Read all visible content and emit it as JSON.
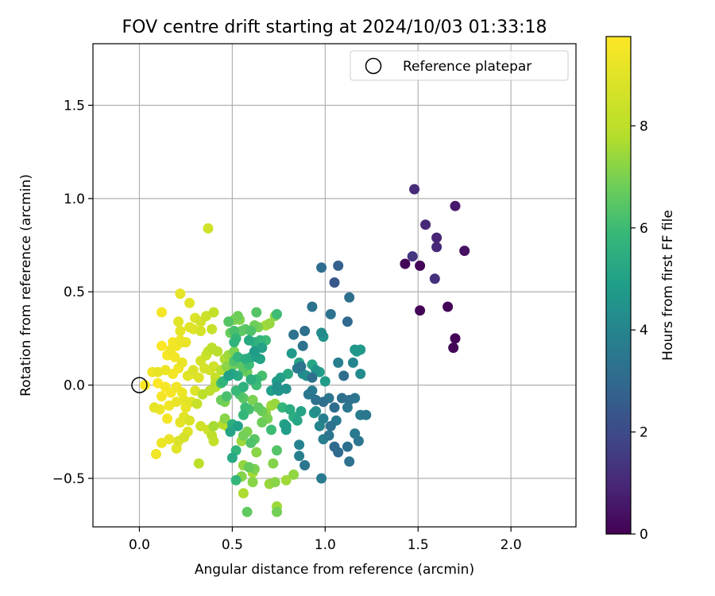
{
  "chart_data": {
    "type": "scatter",
    "title": "FOV centre drift starting at 2024/10/03 01:33:18",
    "xlabel": "Angular distance from reference (arcmin)",
    "ylabel": "Rotation from reference (arcmin)",
    "xlim": [
      -0.25,
      2.35
    ],
    "ylim": [
      -0.76,
      1.83
    ],
    "x_ticks": [
      0.0,
      0.5,
      1.0,
      1.5,
      2.0
    ],
    "x_tick_labels": [
      "0.0",
      "0.5",
      "1.0",
      "1.5",
      "2.0"
    ],
    "y_ticks": [
      -0.5,
      0.0,
      0.5,
      1.0,
      1.5
    ],
    "y_tick_labels": [
      "−0.5",
      "0.0",
      "0.5",
      "1.0",
      "1.5"
    ],
    "grid": true,
    "legend": {
      "placement": "upper right",
      "entries": [
        "Reference platepar"
      ]
    },
    "reference_point": {
      "name": "Reference platepar",
      "x": 0.0,
      "y": 0.0,
      "marker": "open circle"
    },
    "colorbar": {
      "label": "Hours from first FF file",
      "colormap": "viridis",
      "range": [
        0,
        9.75
      ],
      "ticks": [
        0,
        2,
        4,
        6,
        8
      ],
      "tick_labels": [
        "0",
        "2",
        "4",
        "6",
        "8"
      ]
    },
    "points": [
      [
        1.7,
        0.25,
        0.1
      ],
      [
        1.69,
        0.2,
        0.1
      ],
      [
        1.66,
        0.42,
        0.1
      ],
      [
        1.51,
        0.4,
        0.1
      ],
      [
        1.51,
        0.64,
        0.1
      ],
      [
        1.43,
        0.65,
        0.1
      ],
      [
        1.7,
        0.96,
        0.6
      ],
      [
        1.75,
        0.72,
        0.4
      ],
      [
        1.48,
        1.05,
        1.1
      ],
      [
        1.54,
        0.86,
        1.0
      ],
      [
        1.6,
        0.79,
        0.9
      ],
      [
        1.6,
        0.74,
        1.0
      ],
      [
        1.59,
        0.57,
        1.2
      ],
      [
        1.47,
        0.69,
        1.4
      ],
      [
        1.07,
        0.64,
        2.7
      ],
      [
        1.05,
        0.55,
        2.4
      ],
      [
        0.98,
        0.63,
        3.1
      ],
      [
        1.13,
        0.47,
        3.2
      ],
      [
        0.93,
        0.42,
        3.3
      ],
      [
        1.12,
        0.34,
        3.0
      ],
      [
        1.03,
        0.38,
        3.3
      ],
      [
        0.89,
        0.29,
        3.2
      ],
      [
        0.83,
        0.27,
        3.3
      ],
      [
        0.88,
        0.21,
        3.3
      ],
      [
        0.98,
        0.28,
        4.2
      ],
      [
        0.99,
        0.26,
        4.5
      ],
      [
        0.82,
        0.17,
        4.7
      ],
      [
        1.17,
        0.18,
        4.8
      ],
      [
        1.19,
        0.19,
        4.7
      ],
      [
        1.16,
        0.19,
        4.6
      ],
      [
        1.15,
        0.12,
        4.0
      ],
      [
        1.07,
        0.12,
        3.7
      ],
      [
        0.87,
        0.1,
        3.4
      ],
      [
        0.85,
        0.09,
        3.6
      ],
      [
        0.93,
        0.04,
        3.2
      ],
      [
        1.1,
        0.05,
        3.2
      ],
      [
        1.19,
        0.06,
        4.2
      ],
      [
        1.0,
        0.02,
        4.8
      ],
      [
        0.95,
        0.08,
        4.5
      ],
      [
        0.9,
        0.05,
        4.4
      ],
      [
        0.88,
        0.06,
        4.3
      ],
      [
        0.97,
        0.07,
        4.9
      ],
      [
        0.93,
        0.11,
        5.2
      ],
      [
        0.86,
        0.12,
        5.1
      ],
      [
        0.8,
        0.06,
        5.3
      ],
      [
        0.76,
        0.04,
        5.0
      ],
      [
        0.74,
        0.02,
        4.8
      ],
      [
        0.74,
        -0.01,
        4.4
      ],
      [
        0.75,
        -0.03,
        4.6
      ],
      [
        0.71,
        -0.03,
        4.9
      ],
      [
        0.79,
        -0.02,
        4.5
      ],
      [
        0.93,
        -0.03,
        3.6
      ],
      [
        0.91,
        -0.05,
        3.5
      ],
      [
        0.95,
        -0.08,
        3.3
      ],
      [
        0.99,
        -0.09,
        3.2
      ],
      [
        1.02,
        -0.07,
        3.4
      ],
      [
        1.05,
        -0.12,
        3.1
      ],
      [
        1.09,
        -0.07,
        3.2
      ],
      [
        1.13,
        -0.08,
        3.3
      ],
      [
        1.16,
        -0.07,
        3.4
      ],
      [
        1.12,
        -0.12,
        3.5
      ],
      [
        1.06,
        -0.19,
        3.6
      ],
      [
        1.03,
        -0.22,
        3.3
      ],
      [
        1.02,
        -0.27,
        3.4
      ],
      [
        1.05,
        -0.33,
        3.0
      ],
      [
        1.07,
        -0.36,
        3.0
      ],
      [
        1.12,
        -0.33,
        3.2
      ],
      [
        1.18,
        -0.3,
        3.4
      ],
      [
        1.16,
        -0.26,
        3.6
      ],
      [
        1.13,
        -0.41,
        3.3
      ],
      [
        1.19,
        -0.16,
        3.7
      ],
      [
        1.22,
        -0.16,
        3.5
      ],
      [
        0.99,
        -0.18,
        3.8
      ],
      [
        0.97,
        -0.22,
        4.0
      ],
      [
        0.99,
        -0.29,
        3.8
      ],
      [
        0.95,
        -0.14,
        4.3
      ],
      [
        0.94,
        -0.15,
        4.6
      ],
      [
        0.86,
        -0.32,
        3.9
      ],
      [
        0.86,
        -0.38,
        3.8
      ],
      [
        0.89,
        -0.43,
        3.4
      ],
      [
        0.98,
        -0.5,
        3.6
      ],
      [
        0.85,
        -0.19,
        5.2
      ],
      [
        0.83,
        -0.17,
        5.5
      ],
      [
        0.87,
        -0.14,
        5.1
      ],
      [
        0.81,
        -0.13,
        5.4
      ],
      [
        0.77,
        -0.12,
        5.8
      ],
      [
        0.79,
        -0.24,
        4.9
      ],
      [
        0.79,
        -0.22,
        4.8
      ],
      [
        0.78,
        -0.21,
        5.1
      ],
      [
        0.71,
        -0.24,
        6.0
      ],
      [
        0.74,
        -0.35,
        6.4
      ],
      [
        0.72,
        -0.42,
        7.1
      ],
      [
        0.73,
        -0.52,
        7.2
      ],
      [
        0.79,
        -0.51,
        7.5
      ],
      [
        0.83,
        -0.48,
        7.3
      ],
      [
        0.7,
        -0.53,
        7.4
      ],
      [
        0.74,
        -0.65,
        7.5
      ],
      [
        0.74,
        -0.68,
        6.9
      ],
      [
        0.58,
        -0.68,
        6.6
      ],
      [
        0.56,
        -0.58,
        7.7
      ],
      [
        0.55,
        -0.49,
        7.1
      ],
      [
        0.52,
        -0.51,
        5.8
      ],
      [
        0.61,
        -0.52,
        7.2
      ],
      [
        0.61,
        -0.47,
        7.6
      ],
      [
        0.62,
        -0.45,
        7.0
      ],
      [
        0.59,
        -0.44,
        6.7
      ],
      [
        0.56,
        -0.43,
        7.3
      ],
      [
        0.63,
        -0.36,
        7.2
      ],
      [
        0.6,
        -0.31,
        6.3
      ],
      [
        0.62,
        -0.29,
        6.5
      ],
      [
        0.58,
        -0.25,
        7.0
      ],
      [
        0.56,
        -0.27,
        6.9
      ],
      [
        0.55,
        -0.3,
        7.5
      ],
      [
        0.52,
        -0.35,
        5.7
      ],
      [
        0.5,
        -0.39,
        5.3
      ],
      [
        0.53,
        -0.22,
        5.0
      ],
      [
        0.49,
        -0.25,
        5.1
      ],
      [
        0.5,
        -0.21,
        5.5
      ],
      [
        0.56,
        -0.16,
        5.8
      ],
      [
        0.59,
        -0.13,
        6.2
      ],
      [
        0.57,
        -0.12,
        6.0
      ],
      [
        0.64,
        -0.12,
        6.6
      ],
      [
        0.66,
        -0.14,
        6.8
      ],
      [
        0.68,
        -0.15,
        7.3
      ],
      [
        0.71,
        -0.11,
        7.5
      ],
      [
        0.73,
        -0.1,
        7.4
      ],
      [
        0.69,
        -0.18,
        7.0
      ],
      [
        0.66,
        -0.2,
        6.8
      ],
      [
        0.61,
        -0.08,
        7.0
      ],
      [
        0.56,
        -0.07,
        6.5
      ],
      [
        0.54,
        -0.05,
        6.3
      ],
      [
        0.52,
        -0.03,
        5.9
      ],
      [
        0.56,
        -0.01,
        5.6
      ],
      [
        0.6,
        0.03,
        5.5
      ],
      [
        0.63,
        0.03,
        5.9
      ],
      [
        0.66,
        0.05,
        6.2
      ],
      [
        0.63,
        0.0,
        6.0
      ],
      [
        0.53,
        0.05,
        5.4
      ],
      [
        0.5,
        0.06,
        5.2
      ],
      [
        0.48,
        0.05,
        5.0
      ],
      [
        0.45,
        0.02,
        5.7
      ],
      [
        0.44,
        0.01,
        6.1
      ],
      [
        0.47,
        -0.06,
        6.2
      ],
      [
        0.44,
        -0.08,
        6.8
      ],
      [
        0.46,
        -0.09,
        7.0
      ],
      [
        0.46,
        -0.18,
        7.2
      ],
      [
        0.45,
        -0.21,
        7.8
      ],
      [
        0.47,
        -0.22,
        7.9
      ],
      [
        0.4,
        -0.22,
        7.6
      ],
      [
        0.39,
        -0.27,
        8.1
      ],
      [
        0.37,
        -0.24,
        8.5
      ],
      [
        0.4,
        -0.3,
        8.2
      ],
      [
        0.33,
        -0.22,
        8.5
      ],
      [
        0.32,
        -0.42,
        8.0
      ],
      [
        0.31,
        -0.1,
        8.3
      ],
      [
        0.34,
        -0.05,
        8.0
      ],
      [
        0.38,
        -0.03,
        8.1
      ],
      [
        0.41,
        -0.01,
        7.9
      ],
      [
        0.41,
        0.01,
        8.1
      ],
      [
        0.41,
        0.04,
        8.3
      ],
      [
        0.44,
        0.08,
        7.9
      ],
      [
        0.47,
        0.1,
        7.2
      ],
      [
        0.51,
        0.11,
        6.8
      ],
      [
        0.55,
        0.11,
        6.6
      ],
      [
        0.51,
        0.13,
        6.3
      ],
      [
        0.53,
        0.15,
        5.8
      ],
      [
        0.57,
        0.14,
        5.5
      ],
      [
        0.6,
        0.15,
        5.4
      ],
      [
        0.59,
        0.11,
        6.0
      ],
      [
        0.56,
        0.09,
        6.5
      ],
      [
        0.58,
        0.07,
        6.8
      ],
      [
        0.63,
        0.15,
        5.0
      ],
      [
        0.62,
        0.18,
        4.8
      ],
      [
        0.65,
        0.14,
        5.1
      ],
      [
        0.66,
        0.2,
        5.0
      ],
      [
        0.62,
        0.23,
        5.6
      ],
      [
        0.59,
        0.24,
        5.3
      ],
      [
        0.65,
        0.24,
        5.8
      ],
      [
        0.68,
        0.24,
        6.0
      ],
      [
        0.52,
        0.25,
        5.8
      ],
      [
        0.51,
        0.23,
        5.7
      ],
      [
        0.51,
        0.29,
        6.2
      ],
      [
        0.55,
        0.29,
        6.6
      ],
      [
        0.57,
        0.3,
        6.5
      ],
      [
        0.6,
        0.29,
        6.3
      ],
      [
        0.62,
        0.32,
        6.8
      ],
      [
        0.64,
        0.31,
        7.0
      ],
      [
        0.68,
        0.32,
        7.6
      ],
      [
        0.7,
        0.33,
        7.4
      ],
      [
        0.73,
        0.37,
        7.2
      ],
      [
        0.74,
        0.38,
        6.0
      ],
      [
        0.63,
        0.39,
        6.4
      ],
      [
        0.53,
        0.37,
        6.8
      ],
      [
        0.51,
        0.35,
        7.0
      ],
      [
        0.54,
        0.35,
        7.1
      ],
      [
        0.48,
        0.34,
        6.4
      ],
      [
        0.49,
        0.28,
        6.7
      ],
      [
        0.51,
        0.18,
        7.0
      ],
      [
        0.48,
        0.16,
        7.5
      ],
      [
        0.46,
        0.14,
        7.7
      ],
      [
        0.42,
        0.18,
        7.9
      ],
      [
        0.39,
        0.2,
        8.0
      ],
      [
        0.37,
        0.18,
        8.2
      ],
      [
        0.36,
        0.16,
        8.4
      ],
      [
        0.33,
        0.13,
        8.6
      ],
      [
        0.35,
        0.09,
        8.7
      ],
      [
        0.38,
        0.08,
        8.6
      ],
      [
        0.4,
        0.1,
        8.5
      ],
      [
        0.29,
        0.08,
        8.8
      ],
      [
        0.26,
        0.05,
        9.0
      ],
      [
        0.28,
        0.06,
        9.1
      ],
      [
        0.32,
        0.04,
        8.9
      ],
      [
        0.3,
        -0.03,
        8.9
      ],
      [
        0.28,
        -0.09,
        9.0
      ],
      [
        0.25,
        -0.12,
        9.2
      ],
      [
        0.24,
        -0.17,
        9.0
      ],
      [
        0.22,
        -0.2,
        9.1
      ],
      [
        0.27,
        -0.19,
        8.8
      ],
      [
        0.26,
        -0.25,
        8.9
      ],
      [
        0.24,
        -0.28,
        8.6
      ],
      [
        0.21,
        -0.3,
        8.8
      ],
      [
        0.2,
        -0.34,
        9.0
      ],
      [
        0.16,
        -0.29,
        9.2
      ],
      [
        0.12,
        -0.31,
        9.3
      ],
      [
        0.09,
        -0.37,
        9.4
      ],
      [
        0.15,
        -0.18,
        9.5
      ],
      [
        0.11,
        -0.13,
        9.3
      ],
      [
        0.08,
        -0.12,
        9.1
      ],
      [
        0.12,
        -0.06,
        9.5
      ],
      [
        0.17,
        -0.04,
        9.6
      ],
      [
        0.2,
        -0.01,
        9.4
      ],
      [
        0.23,
        -0.04,
        9.3
      ],
      [
        0.24,
        -0.08,
        9.1
      ],
      [
        0.2,
        -0.09,
        9.2
      ],
      [
        0.16,
        -0.11,
        9.4
      ],
      [
        0.14,
        -0.01,
        9.6
      ],
      [
        0.1,
        0.01,
        9.7
      ],
      [
        0.07,
        0.07,
        9.4
      ],
      [
        0.1,
        0.07,
        9.2
      ],
      [
        0.14,
        0.08,
        9.3
      ],
      [
        0.18,
        0.06,
        9.5
      ],
      [
        0.21,
        0.09,
        9.4
      ],
      [
        0.23,
        0.12,
        9.2
      ],
      [
        0.19,
        0.15,
        9.5
      ],
      [
        0.15,
        0.16,
        9.6
      ],
      [
        0.17,
        0.19,
        9.4
      ],
      [
        0.2,
        0.21,
        9.5
      ],
      [
        0.23,
        0.23,
        9.3
      ],
      [
        0.25,
        0.23,
        9.2
      ],
      [
        0.22,
        0.24,
        9.4
      ],
      [
        0.18,
        0.23,
        9.6
      ],
      [
        0.12,
        0.21,
        9.7
      ],
      [
        0.12,
        0.39,
        9.5
      ],
      [
        0.22,
        0.29,
        9.1
      ],
      [
        0.21,
        0.34,
        9.0
      ],
      [
        0.22,
        0.49,
        9.1
      ],
      [
        0.27,
        0.44,
        9.0
      ],
      [
        0.27,
        0.31,
        9.0
      ],
      [
        0.29,
        0.3,
        8.9
      ],
      [
        0.3,
        0.36,
        8.8
      ],
      [
        0.33,
        0.34,
        8.6
      ],
      [
        0.36,
        0.37,
        8.4
      ],
      [
        0.33,
        0.29,
        8.7
      ],
      [
        0.39,
        0.3,
        8.3
      ],
      [
        0.4,
        0.39,
        8.2
      ],
      [
        0.37,
        0.84,
        8.5
      ],
      [
        0.03,
        0.0,
        9.7
      ]
    ]
  }
}
